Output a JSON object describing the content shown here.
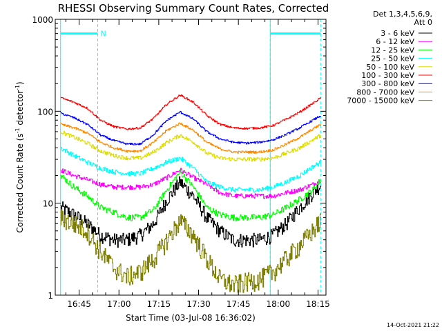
{
  "chart_data": {
    "type": "line",
    "title": "RHESSI Observing Summary Count Rates, Corrected",
    "xlabel": "Start Time (03-Jul-08 16:36:02)",
    "ylabel_main": "Corrected Count Rate (s",
    "ylabel_sup1": "-1",
    "ylabel_mid": " detector",
    "ylabel_sup2": "-1",
    "ylabel_end": ")",
    "y_scale": "log",
    "ylim": [
      1,
      1000
    ],
    "xlim": [
      -2,
      100
    ],
    "x_unit": "minutes after 16:38:00",
    "x_ticks": [
      {
        "label": "16:45",
        "value": 7
      },
      {
        "label": "17:00",
        "value": 22
      },
      {
        "label": "17:15",
        "value": 37
      },
      {
        "label": "17:30",
        "value": 52
      },
      {
        "label": "17:45",
        "value": 67
      },
      {
        "label": "18:00",
        "value": 82
      },
      {
        "label": "18:15",
        "value": 97
      }
    ],
    "y_ticks": [
      {
        "label": "1",
        "value": 1
      },
      {
        "label": "10",
        "value": 10
      },
      {
        "label": "100",
        "value": 100
      },
      {
        "label": "1000",
        "value": 1000
      }
    ],
    "legend_header": [
      "Det 1,3,4,5,6,9,",
      "Att 0"
    ],
    "legend_position": "right",
    "flags": [
      {
        "label": "N",
        "start": 0,
        "end": 14,
        "level": 700
      },
      {
        "label": "",
        "start": 79,
        "end": 98,
        "level": 700
      }
    ],
    "night_markers": [
      14,
      79,
      98
    ],
    "x": [
      0,
      5,
      10,
      15,
      20,
      25,
      30,
      35,
      40,
      45,
      50,
      55,
      60,
      65,
      70,
      75,
      80,
      85,
      90,
      95,
      98
    ],
    "series": [
      {
        "name": "3 - 6 keV",
        "color": "#000000",
        "noise": 0.18,
        "values": [
          9,
          7.5,
          6,
          4.5,
          4,
          4,
          4.5,
          6,
          11,
          17,
          12,
          7,
          5,
          4,
          4,
          4,
          4.5,
          6,
          9,
          13,
          16
        ]
      },
      {
        "name": "6 - 12 keV",
        "color": "#ff00ff",
        "noise": 0.06,
        "values": [
          23,
          20,
          18,
          16,
          15,
          15,
          15,
          16,
          19,
          23,
          19,
          16,
          13,
          12,
          12,
          12,
          12,
          13,
          14,
          16,
          18
        ]
      },
      {
        "name": "12 - 25 keV",
        "color": "#00ff00",
        "noise": 0.08,
        "values": [
          20,
          15,
          12,
          9,
          8,
          7,
          7,
          8.5,
          14,
          22,
          15,
          9,
          7.5,
          7,
          7,
          7,
          7.5,
          9,
          11,
          14,
          18
        ]
      },
      {
        "name": "25 - 50 keV",
        "color": "#00ffff",
        "noise": 0.06,
        "values": [
          40,
          33,
          28,
          24,
          22,
          21,
          21,
          24,
          28,
          31,
          24,
          17,
          15,
          14,
          14,
          14,
          15,
          17,
          20,
          25,
          28
        ]
      },
      {
        "name": "50 - 100 keV",
        "color": "#dddd00",
        "noise": 0.05,
        "values": [
          60,
          52,
          45,
          37,
          33,
          31,
          31,
          36,
          46,
          55,
          46,
          35,
          31,
          30,
          30,
          30,
          31,
          35,
          40,
          49,
          55
        ]
      },
      {
        "name": "100 - 300 keV",
        "color": "#ff0000",
        "noise": 0.025,
        "values": [
          140,
          125,
          108,
          80,
          68,
          64,
          66,
          84,
          120,
          150,
          125,
          90,
          72,
          66,
          65,
          66,
          70,
          82,
          98,
          122,
          140
        ]
      },
      {
        "name": "300 - 800 keV",
        "color": "#0000ff",
        "noise": 0.025,
        "values": [
          95,
          85,
          72,
          55,
          48,
          44,
          44,
          56,
          80,
          98,
          82,
          60,
          50,
          46,
          45,
          46,
          49,
          56,
          66,
          80,
          90
        ]
      },
      {
        "name": "800 - 7000 keV",
        "color": "#ff8800",
        "noise": 0.03,
        "values": [
          72,
          66,
          58,
          46,
          40,
          37,
          37,
          46,
          62,
          74,
          62,
          46,
          39,
          36,
          36,
          36,
          38,
          44,
          52,
          64,
          72
        ]
      },
      {
        "name": "7000 - 15000 keV",
        "color": "#808000",
        "noise": 0.25,
        "values": [
          7,
          6,
          5,
          3,
          2,
          1.6,
          1.8,
          2.5,
          4,
          6.5,
          4.5,
          2.5,
          1.5,
          1.3,
          1.4,
          1.5,
          1.8,
          2.5,
          3.5,
          5,
          6.5
        ]
      }
    ]
  },
  "footer": {
    "date_stamp": "14-Oct-2021 21:22"
  }
}
